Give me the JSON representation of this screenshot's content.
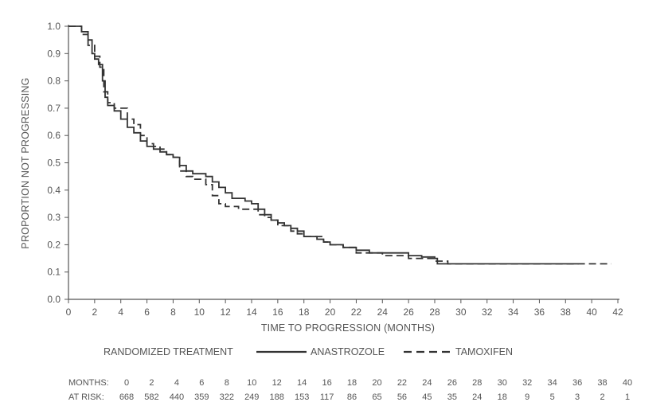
{
  "chart_data": {
    "type": "line",
    "title": "",
    "xlabel": "TIME TO PROGRESSION (MONTHS)",
    "ylabel": "PROPORTION NOT PROGRESSING",
    "xlim": [
      0,
      42
    ],
    "ylim": [
      0,
      1.0
    ],
    "x_ticks": [
      0,
      2,
      4,
      6,
      8,
      10,
      12,
      14,
      16,
      18,
      20,
      22,
      24,
      26,
      28,
      30,
      32,
      34,
      36,
      38,
      40,
      42
    ],
    "y_ticks": [
      "0.0",
      "0.1",
      "0.2",
      "0.3",
      "0.4",
      "0.5",
      "0.6",
      "0.7",
      "0.8",
      "0.9",
      "1.0"
    ],
    "grid": false,
    "legend": {
      "title": "RANDOMIZED TREATMENT",
      "placement": "bottom"
    },
    "series": [
      {
        "name": "ANASTROZOLE",
        "style": "solid",
        "color": "#333333",
        "points": [
          [
            0,
            1.0
          ],
          [
            0.6,
            1.0
          ],
          [
            1.0,
            0.98
          ],
          [
            1.5,
            0.95
          ],
          [
            1.8,
            0.9
          ],
          [
            2.0,
            0.88
          ],
          [
            2.3,
            0.86
          ],
          [
            2.6,
            0.8
          ],
          [
            2.8,
            0.74
          ],
          [
            3.0,
            0.71
          ],
          [
            3.5,
            0.69
          ],
          [
            4.0,
            0.66
          ],
          [
            4.5,
            0.63
          ],
          [
            5.0,
            0.61
          ],
          [
            5.5,
            0.58
          ],
          [
            6.0,
            0.56
          ],
          [
            6.5,
            0.55
          ],
          [
            7.0,
            0.54
          ],
          [
            7.5,
            0.53
          ],
          [
            8.0,
            0.52
          ],
          [
            8.5,
            0.49
          ],
          [
            9.0,
            0.47
          ],
          [
            9.5,
            0.46
          ],
          [
            10.0,
            0.46
          ],
          [
            10.5,
            0.45
          ],
          [
            11.0,
            0.43
          ],
          [
            11.5,
            0.41
          ],
          [
            12.0,
            0.39
          ],
          [
            12.5,
            0.37
          ],
          [
            13.0,
            0.37
          ],
          [
            13.5,
            0.36
          ],
          [
            14.0,
            0.35
          ],
          [
            14.5,
            0.33
          ],
          [
            15.0,
            0.31
          ],
          [
            15.5,
            0.29
          ],
          [
            16.0,
            0.28
          ],
          [
            16.5,
            0.27
          ],
          [
            17.0,
            0.26
          ],
          [
            17.5,
            0.25
          ],
          [
            18.0,
            0.23
          ],
          [
            19.0,
            0.22
          ],
          [
            19.5,
            0.21
          ],
          [
            20.0,
            0.2
          ],
          [
            21.0,
            0.19
          ],
          [
            22.0,
            0.18
          ],
          [
            23.0,
            0.17
          ],
          [
            24.0,
            0.17
          ],
          [
            25.0,
            0.17
          ],
          [
            26.0,
            0.16
          ],
          [
            27.0,
            0.155
          ],
          [
            28.0,
            0.15
          ],
          [
            28.2,
            0.13
          ],
          [
            30.0,
            0.13
          ],
          [
            32.0,
            0.13
          ],
          [
            34.0,
            0.13
          ],
          [
            36.0,
            0.13
          ],
          [
            38.0,
            0.13
          ],
          [
            39.0,
            0.13
          ]
        ]
      },
      {
        "name": "TAMOXIFEN",
        "style": "dashed",
        "color": "#333333",
        "points": [
          [
            0,
            1.0
          ],
          [
            0.5,
            1.0
          ],
          [
            1.0,
            0.97
          ],
          [
            1.5,
            0.93
          ],
          [
            2.0,
            0.89
          ],
          [
            2.4,
            0.85
          ],
          [
            2.7,
            0.76
          ],
          [
            3.0,
            0.72
          ],
          [
            3.5,
            0.7
          ],
          [
            4.0,
            0.7
          ],
          [
            4.5,
            0.66
          ],
          [
            5.0,
            0.64
          ],
          [
            5.5,
            0.6
          ],
          [
            6.0,
            0.57
          ],
          [
            6.5,
            0.56
          ],
          [
            7.0,
            0.55
          ],
          [
            7.5,
            0.53
          ],
          [
            8.0,
            0.52
          ],
          [
            8.5,
            0.47
          ],
          [
            9.0,
            0.45
          ],
          [
            9.5,
            0.44
          ],
          [
            10.0,
            0.44
          ],
          [
            10.5,
            0.42
          ],
          [
            11.0,
            0.38
          ],
          [
            11.5,
            0.35
          ],
          [
            12.0,
            0.34
          ],
          [
            13.0,
            0.33
          ],
          [
            14.0,
            0.33
          ],
          [
            14.5,
            0.31
          ],
          [
            15.0,
            0.3
          ],
          [
            15.5,
            0.29
          ],
          [
            16.0,
            0.27
          ],
          [
            17.0,
            0.25
          ],
          [
            17.5,
            0.24
          ],
          [
            18.0,
            0.23
          ],
          [
            19.0,
            0.23
          ],
          [
            19.5,
            0.21
          ],
          [
            20.0,
            0.2
          ],
          [
            21.0,
            0.19
          ],
          [
            22.0,
            0.17
          ],
          [
            23.0,
            0.17
          ],
          [
            24.0,
            0.16
          ],
          [
            25.0,
            0.16
          ],
          [
            26.0,
            0.15
          ],
          [
            27.0,
            0.15
          ],
          [
            28.0,
            0.14
          ],
          [
            29.0,
            0.13
          ],
          [
            30.0,
            0.13
          ],
          [
            32.0,
            0.13
          ],
          [
            34.0,
            0.13
          ],
          [
            36.0,
            0.13
          ],
          [
            38.0,
            0.13
          ],
          [
            40.0,
            0.13
          ],
          [
            41.5,
            0.13
          ]
        ]
      }
    ],
    "at_risk": {
      "months_label": "MONTHS:",
      "at_risk_label": "AT RISK:",
      "months": [
        "0",
        "2",
        "4",
        "6",
        "8",
        "10",
        "12",
        "14",
        "16",
        "18",
        "20",
        "22",
        "24",
        "26",
        "28",
        "30",
        "32",
        "34",
        "36",
        "38",
        "40"
      ],
      "counts": [
        "668",
        "582",
        "440",
        "359",
        "322",
        "249",
        "188",
        "153",
        "117",
        "86",
        "65",
        "56",
        "45",
        "35",
        "24",
        "18",
        "9",
        "5",
        "3",
        "2",
        "1"
      ]
    }
  }
}
